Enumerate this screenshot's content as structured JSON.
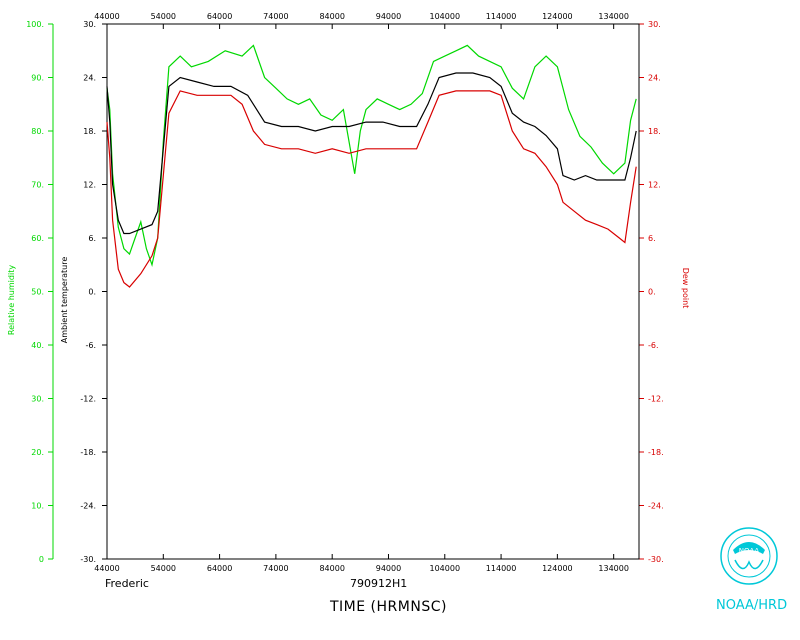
{
  "chart_data": {
    "type": "line",
    "x_label": "TIME (HRMNSC)",
    "x_range": [
      44000,
      138500
    ],
    "x_ticks": [
      44000,
      54000,
      64000,
      74000,
      84000,
      94000,
      104000,
      114000,
      124000,
      134000
    ],
    "axes": {
      "relative_humidity": {
        "label": "Relative humidity",
        "range": [
          0,
          100
        ],
        "ticks": [
          "0",
          "10.",
          "20.",
          "30.",
          "40.",
          "50.",
          "60.",
          "70.",
          "80.",
          "90.",
          "100."
        ],
        "color": "#00d800"
      },
      "ambient_temperature": {
        "label": "Ambient temperature",
        "range": [
          -30,
          30
        ],
        "ticks": [
          "-30.",
          "-24.",
          "-18.",
          "-12.",
          "-6.",
          "0.",
          "6.",
          "12.",
          "18.",
          "24.",
          "30."
        ],
        "color": "#000000"
      },
      "dew_point": {
        "label": "Dew point",
        "range": [
          -30,
          30
        ],
        "ticks": [
          "-30.",
          "-24.",
          "-18.",
          "-12.",
          "-6.",
          "0.",
          "6.",
          "12.",
          "18.",
          "24.",
          "30."
        ],
        "color": "#d80000"
      }
    },
    "series": [
      {
        "name": "Relative humidity",
        "axis": "relative_humidity",
        "color": "#00d800",
        "points": [
          [
            44000,
            88
          ],
          [
            44500,
            84
          ],
          [
            45000,
            72
          ],
          [
            46000,
            62
          ],
          [
            47000,
            58
          ],
          [
            48000,
            57
          ],
          [
            49000,
            60
          ],
          [
            50000,
            63
          ],
          [
            51000,
            58
          ],
          [
            52000,
            55
          ],
          [
            53000,
            60
          ],
          [
            54000,
            78
          ],
          [
            55000,
            92
          ],
          [
            57000,
            94
          ],
          [
            59000,
            92
          ],
          [
            62000,
            93
          ],
          [
            65000,
            95
          ],
          [
            68000,
            94
          ],
          [
            70000,
            96
          ],
          [
            72000,
            90
          ],
          [
            74000,
            88
          ],
          [
            76000,
            86
          ],
          [
            78000,
            85
          ],
          [
            80000,
            86
          ],
          [
            82000,
            83
          ],
          [
            84000,
            82
          ],
          [
            86000,
            84
          ],
          [
            88000,
            72
          ],
          [
            89000,
            80
          ],
          [
            90000,
            84
          ],
          [
            92000,
            86
          ],
          [
            94000,
            85
          ],
          [
            96000,
            84
          ],
          [
            98000,
            85
          ],
          [
            100000,
            87
          ],
          [
            102000,
            93
          ],
          [
            104000,
            94
          ],
          [
            106000,
            95
          ],
          [
            108000,
            96
          ],
          [
            110000,
            94
          ],
          [
            112000,
            93
          ],
          [
            114000,
            92
          ],
          [
            116000,
            88
          ],
          [
            118000,
            86
          ],
          [
            120000,
            92
          ],
          [
            122000,
            94
          ],
          [
            124000,
            92
          ],
          [
            126000,
            84
          ],
          [
            128000,
            79
          ],
          [
            130000,
            77
          ],
          [
            132000,
            74
          ],
          [
            134000,
            72
          ],
          [
            136000,
            74
          ],
          [
            137000,
            82
          ],
          [
            138000,
            86
          ]
        ]
      },
      {
        "name": "Ambient temperature",
        "axis": "ambient_temperature",
        "color": "#000000",
        "points": [
          [
            44000,
            23
          ],
          [
            44500,
            19
          ],
          [
            45000,
            12
          ],
          [
            46000,
            8
          ],
          [
            47000,
            6.5
          ],
          [
            48000,
            6.5
          ],
          [
            50000,
            7
          ],
          [
            52000,
            7.5
          ],
          [
            53000,
            9
          ],
          [
            54000,
            16
          ],
          [
            55000,
            23
          ],
          [
            57000,
            24
          ],
          [
            60000,
            23.5
          ],
          [
            63000,
            23
          ],
          [
            66000,
            23
          ],
          [
            69000,
            22
          ],
          [
            70000,
            21
          ],
          [
            72000,
            19
          ],
          [
            75000,
            18.5
          ],
          [
            78000,
            18.5
          ],
          [
            81000,
            18
          ],
          [
            84000,
            18.5
          ],
          [
            87000,
            18.5
          ],
          [
            90000,
            19
          ],
          [
            93000,
            19
          ],
          [
            96000,
            18.5
          ],
          [
            99000,
            18.5
          ],
          [
            101000,
            21
          ],
          [
            103000,
            24
          ],
          [
            106000,
            24.5
          ],
          [
            109000,
            24.5
          ],
          [
            112000,
            24
          ],
          [
            114000,
            23
          ],
          [
            116000,
            20
          ],
          [
            118000,
            19
          ],
          [
            120000,
            18.5
          ],
          [
            122000,
            17.5
          ],
          [
            124000,
            16
          ],
          [
            125000,
            13
          ],
          [
            127000,
            12.5
          ],
          [
            129000,
            13
          ],
          [
            131000,
            12.5
          ],
          [
            133000,
            12.5
          ],
          [
            135000,
            12.5
          ],
          [
            136000,
            12.5
          ],
          [
            137000,
            15
          ],
          [
            138000,
            18
          ]
        ]
      },
      {
        "name": "Dew point",
        "axis": "dew_point",
        "color": "#d80000",
        "points": [
          [
            44000,
            19
          ],
          [
            44500,
            15
          ],
          [
            45000,
            8
          ],
          [
            46000,
            2.5
          ],
          [
            47000,
            1
          ],
          [
            48000,
            0.5
          ],
          [
            50000,
            2
          ],
          [
            52000,
            4
          ],
          [
            53000,
            6
          ],
          [
            54000,
            13
          ],
          [
            55000,
            20
          ],
          [
            57000,
            22.5
          ],
          [
            60000,
            22
          ],
          [
            63000,
            22
          ],
          [
            66000,
            22
          ],
          [
            68000,
            21
          ],
          [
            70000,
            18
          ],
          [
            72000,
            16.5
          ],
          [
            75000,
            16
          ],
          [
            78000,
            16
          ],
          [
            81000,
            15.5
          ],
          [
            84000,
            16
          ],
          [
            87000,
            15.5
          ],
          [
            90000,
            16
          ],
          [
            93000,
            16
          ],
          [
            96000,
            16
          ],
          [
            99000,
            16
          ],
          [
            101000,
            19
          ],
          [
            103000,
            22
          ],
          [
            106000,
            22.5
          ],
          [
            109000,
            22.5
          ],
          [
            112000,
            22.5
          ],
          [
            114000,
            22
          ],
          [
            116000,
            18
          ],
          [
            118000,
            16
          ],
          [
            120000,
            15.5
          ],
          [
            122000,
            14
          ],
          [
            124000,
            12
          ],
          [
            125000,
            10
          ],
          [
            127000,
            9
          ],
          [
            129000,
            8
          ],
          [
            131000,
            7.5
          ],
          [
            133000,
            7
          ],
          [
            135000,
            6
          ],
          [
            136000,
            5.5
          ],
          [
            137000,
            10
          ],
          [
            138000,
            14
          ]
        ]
      }
    ]
  },
  "footer": {
    "storm": "Frederic",
    "flight": "790912H1",
    "xlabel": "TIME (HRMNSC)",
    "org": "NOAA/HRD",
    "logo_text": "noaa"
  },
  "colors": {
    "humidity": "#00d800",
    "temperature": "#000000",
    "dewpoint": "#d80000",
    "org": "#00c8d8"
  }
}
